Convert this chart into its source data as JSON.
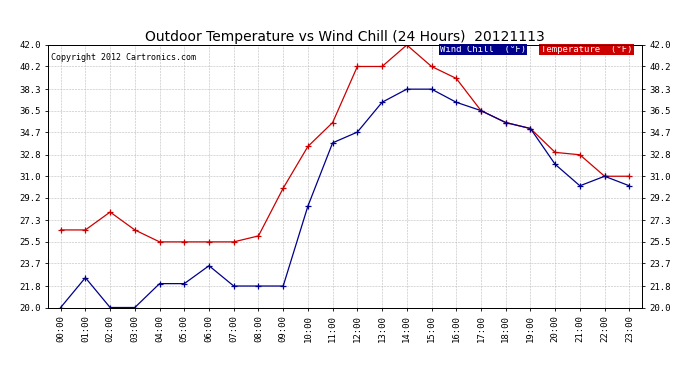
{
  "title": "Outdoor Temperature vs Wind Chill (24 Hours)  20121113",
  "copyright": "Copyright 2012 Cartronics.com",
  "legend_wind": "Wind Chill  (°F)",
  "legend_temp": "Temperature  (°F)",
  "hours": [
    "00:00",
    "01:00",
    "02:00",
    "03:00",
    "04:00",
    "05:00",
    "06:00",
    "07:00",
    "08:00",
    "09:00",
    "10:00",
    "11:00",
    "12:00",
    "13:00",
    "14:00",
    "15:00",
    "16:00",
    "17:00",
    "18:00",
    "19:00",
    "20:00",
    "21:00",
    "22:00",
    "23:00"
  ],
  "temperature": [
    26.5,
    26.5,
    28.0,
    26.5,
    25.5,
    25.5,
    25.5,
    25.5,
    26.0,
    30.0,
    33.5,
    35.5,
    40.2,
    40.2,
    42.0,
    40.2,
    39.2,
    36.5,
    35.5,
    35.0,
    33.0,
    32.8,
    31.0,
    31.0
  ],
  "wind_chill": [
    20.0,
    22.5,
    20.0,
    20.0,
    22.0,
    22.0,
    23.5,
    21.8,
    21.8,
    21.8,
    28.5,
    33.8,
    34.7,
    37.2,
    38.3,
    38.3,
    37.2,
    36.5,
    35.5,
    35.0,
    32.0,
    30.2,
    31.0,
    30.2
  ],
  "ylim_min": 20.0,
  "ylim_max": 42.0,
  "yticks": [
    20.0,
    21.8,
    23.7,
    25.5,
    27.3,
    29.2,
    31.0,
    32.8,
    34.7,
    36.5,
    38.3,
    40.2,
    42.0
  ],
  "temp_color": "#cc0000",
  "wind_color": "#00008b",
  "bg_color": "#ffffff",
  "plot_bg": "#ffffff",
  "grid_color": "#bbbbbb",
  "title_fontsize": 10,
  "tick_fontsize": 6.5,
  "copyright_fontsize": 6
}
